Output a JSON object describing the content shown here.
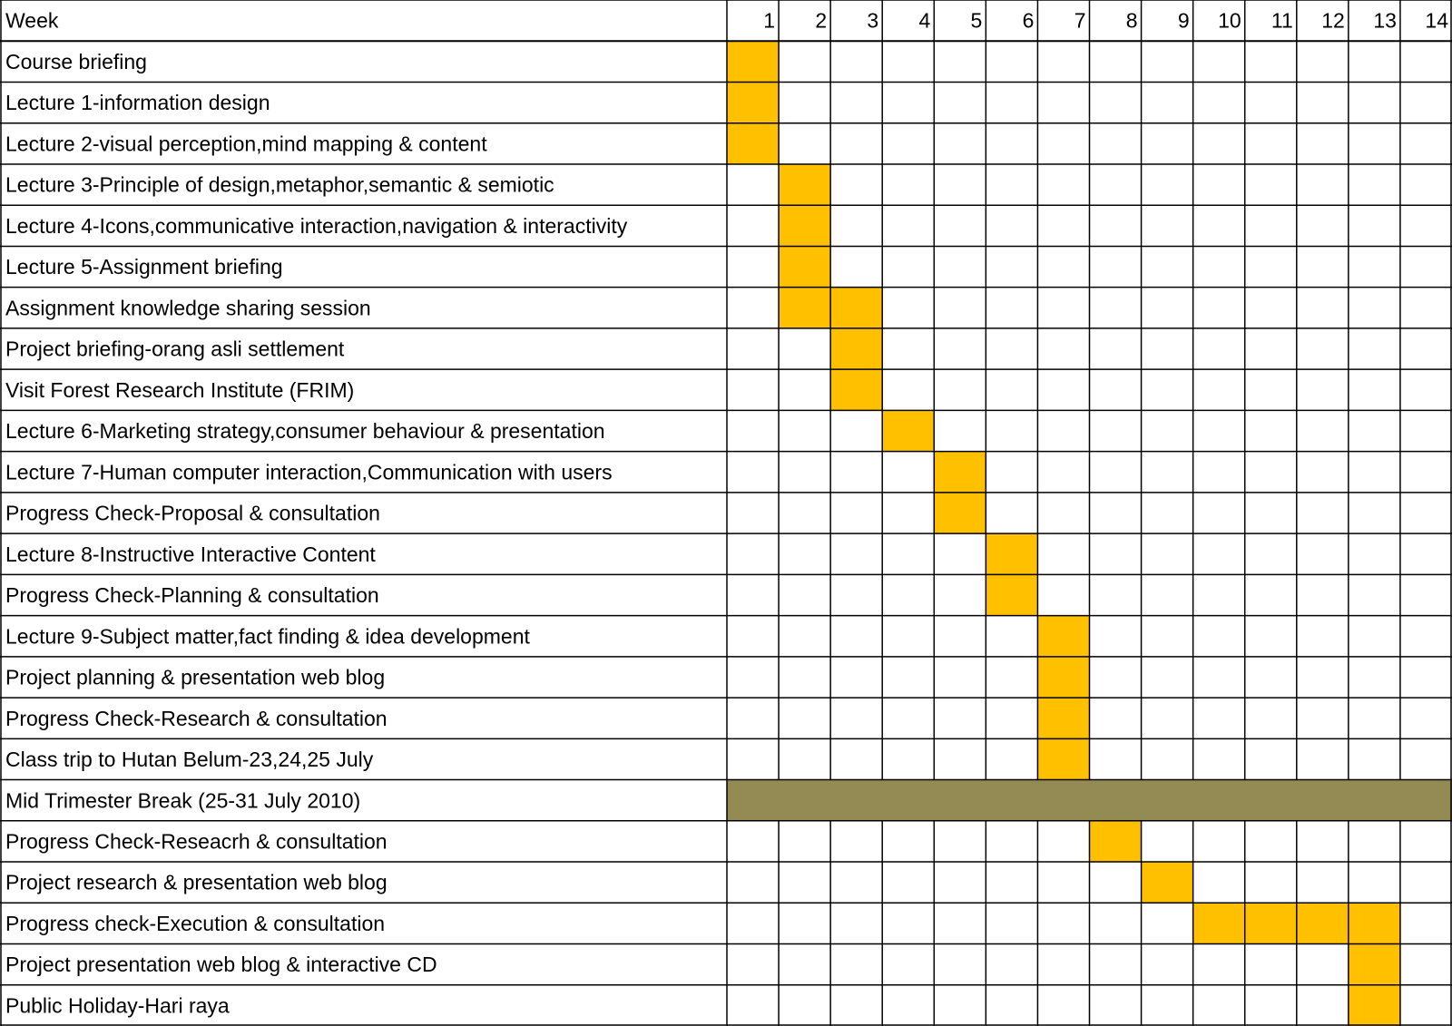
{
  "header": {
    "label": "Week",
    "weeks": [
      1,
      2,
      3,
      4,
      5,
      6,
      7,
      8,
      9,
      10,
      11,
      12,
      13,
      14
    ]
  },
  "color": "#ffc000",
  "rows": [
    {
      "label": "Course briefing",
      "weeks": [
        1
      ]
    },
    {
      "label": "Lecture 1-information design",
      "weeks": [
        1
      ]
    },
    {
      "label": "Lecture 2-visual perception,mind mapping & content",
      "weeks": [
        1
      ]
    },
    {
      "label": "Lecture 3-Principle of design,metaphor,semantic & semiotic",
      "weeks": [
        2
      ]
    },
    {
      "label": "Lecture 4-Icons,communicative interaction,navigation & interactivity",
      "weeks": [
        2
      ]
    },
    {
      "label": "Lecture 5-Assignment briefing",
      "weeks": [
        2
      ]
    },
    {
      "label": "Assignment knowledge sharing session",
      "weeks": [
        2,
        3
      ]
    },
    {
      "label": "Project briefing-orang asli settlement",
      "weeks": [
        3
      ]
    },
    {
      "label": "Visit Forest Research Institute (FRIM)",
      "weeks": [
        3
      ]
    },
    {
      "label": "Lecture 6-Marketing strategy,consumer behaviour & presentation",
      "weeks": [
        4
      ]
    },
    {
      "label": "Lecture 7-Human computer interaction,Communication with users",
      "weeks": [
        5
      ]
    },
    {
      "label": "Progress Check-Proposal & consultation",
      "weeks": [
        5
      ]
    },
    {
      "label": "Lecture 8-Instructive Interactive Content",
      "weeks": [
        6
      ]
    },
    {
      "label": "Progress Check-Planning & consultation",
      "weeks": [
        6
      ]
    },
    {
      "label": "Lecture 9-Subject matter,fact finding & idea development",
      "weeks": [
        7
      ]
    },
    {
      "label": "Project planning & presentation web blog",
      "weeks": [
        7
      ]
    },
    {
      "label": "Progress Check-Research & consultation",
      "weeks": [
        7
      ]
    },
    {
      "label": "Class trip to Hutan Belum-23,24,25 July",
      "weeks": [
        7
      ]
    },
    {
      "label": "Mid Trimester Break (25-31 July 2010)",
      "weeks": [
        1,
        2,
        3,
        4,
        5,
        6,
        7,
        8,
        9,
        10,
        11,
        12,
        13,
        14
      ],
      "color": "#948a54"
    },
    {
      "label": "Progress Check-Reseacrh & consultation",
      "weeks": [
        8
      ]
    },
    {
      "label": "Project research & presentation web blog",
      "weeks": [
        9
      ]
    },
    {
      "label": "Progress check-Execution & consultation",
      "weeks": [
        10,
        11,
        12,
        13
      ]
    },
    {
      "label": "Project presentation web blog & interactive CD",
      "weeks": [
        13
      ]
    },
    {
      "label": "Public Holiday-Hari raya",
      "weeks": [
        13
      ]
    }
  ]
}
